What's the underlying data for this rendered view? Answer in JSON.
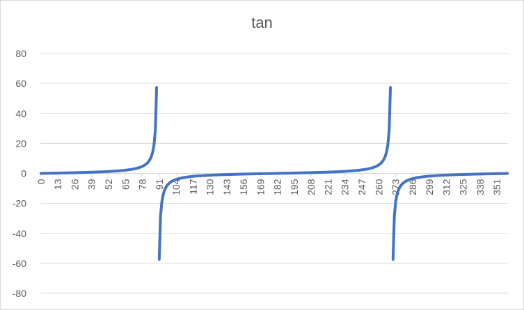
{
  "chart_data": {
    "type": "line",
    "title": "tan",
    "xlabel": "",
    "ylabel": "",
    "x_range": [
      0,
      359
    ],
    "x_tick_step": 13,
    "x_tick_labels": [
      "0",
      "13",
      "26",
      "39",
      "52",
      "65",
      "78",
      "91",
      "104",
      "117",
      "130",
      "143",
      "156",
      "169",
      "182",
      "195",
      "208",
      "221",
      "234",
      "247",
      "260",
      "273",
      "286",
      "299",
      "312",
      "325",
      "338",
      "351"
    ],
    "ylim": [
      -80,
      80
    ],
    "y_ticks": [
      -80,
      -60,
      -40,
      -20,
      0,
      20,
      40,
      60,
      80
    ],
    "grid": true,
    "legend": "none",
    "series": [
      {
        "function": "tan(x in degrees)",
        "x_start": 0,
        "x_end": 359,
        "x_step": 1,
        "color": "#4472c4"
      }
    ]
  },
  "colors": {
    "gridline": "#d9d9d9",
    "text": "#595959",
    "series": "#4472c4"
  }
}
